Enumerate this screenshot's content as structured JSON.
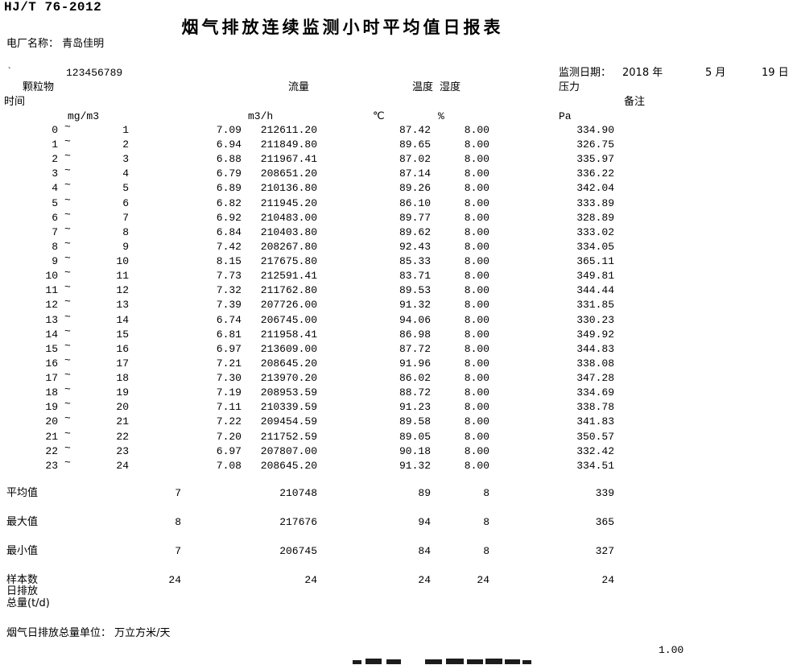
{
  "doc": {
    "standard": "HJ/T 76-2012",
    "title": "烟气排放连续监测小时平均值日报表",
    "plant_label": "电厂名称：",
    "plant_name": "青岛佳明",
    "tick_mark": "`",
    "serial": "123456789",
    "date_label": "监测日期：",
    "date_year": "2018 年",
    "date_month": "5 月",
    "date_day": "19 日"
  },
  "columns": {
    "time_label": "时间",
    "particulate": {
      "name": "颗粒物",
      "unit": "mg/m3"
    },
    "flow": {
      "name": "流量",
      "unit": "m3/h"
    },
    "temperature": {
      "name": "温度",
      "unit": "℃"
    },
    "humidity": {
      "name": "湿度",
      "unit": "%"
    },
    "pressure": {
      "name": "压力",
      "unit": "Pa"
    },
    "remark": {
      "name": "备注"
    }
  },
  "table": {
    "tilde": "~",
    "rows": [
      {
        "from": "0",
        "to": "1",
        "conc": "7.09",
        "flow": "212611.20",
        "temp": "87.42",
        "hum": "8.00",
        "pres": "334.90"
      },
      {
        "from": "1",
        "to": "2",
        "conc": "6.94",
        "flow": "211849.80",
        "temp": "89.65",
        "hum": "8.00",
        "pres": "326.75"
      },
      {
        "from": "2",
        "to": "3",
        "conc": "6.88",
        "flow": "211967.41",
        "temp": "87.02",
        "hum": "8.00",
        "pres": "335.97"
      },
      {
        "from": "3",
        "to": "4",
        "conc": "6.79",
        "flow": "208651.20",
        "temp": "87.14",
        "hum": "8.00",
        "pres": "336.22"
      },
      {
        "from": "4",
        "to": "5",
        "conc": "6.89",
        "flow": "210136.80",
        "temp": "89.26",
        "hum": "8.00",
        "pres": "342.04"
      },
      {
        "from": "5",
        "to": "6",
        "conc": "6.82",
        "flow": "211945.20",
        "temp": "86.10",
        "hum": "8.00",
        "pres": "333.89"
      },
      {
        "from": "6",
        "to": "7",
        "conc": "6.92",
        "flow": "210483.00",
        "temp": "89.77",
        "hum": "8.00",
        "pres": "328.89"
      },
      {
        "from": "7",
        "to": "8",
        "conc": "6.84",
        "flow": "210403.80",
        "temp": "89.62",
        "hum": "8.00",
        "pres": "333.02"
      },
      {
        "from": "8",
        "to": "9",
        "conc": "7.42",
        "flow": "208267.80",
        "temp": "92.43",
        "hum": "8.00",
        "pres": "334.05"
      },
      {
        "from": "9",
        "to": "10",
        "conc": "8.15",
        "flow": "217675.80",
        "temp": "85.33",
        "hum": "8.00",
        "pres": "365.11"
      },
      {
        "from": "10",
        "to": "11",
        "conc": "7.73",
        "flow": "212591.41",
        "temp": "83.71",
        "hum": "8.00",
        "pres": "349.81"
      },
      {
        "from": "11",
        "to": "12",
        "conc": "7.32",
        "flow": "211762.80",
        "temp": "89.53",
        "hum": "8.00",
        "pres": "344.44"
      },
      {
        "from": "12",
        "to": "13",
        "conc": "7.39",
        "flow": "207726.00",
        "temp": "91.32",
        "hum": "8.00",
        "pres": "331.85"
      },
      {
        "from": "13",
        "to": "14",
        "conc": "6.74",
        "flow": "206745.00",
        "temp": "94.06",
        "hum": "8.00",
        "pres": "330.23"
      },
      {
        "from": "14",
        "to": "15",
        "conc": "6.81",
        "flow": "211958.41",
        "temp": "86.98",
        "hum": "8.00",
        "pres": "349.92"
      },
      {
        "from": "15",
        "to": "16",
        "conc": "6.97",
        "flow": "213609.00",
        "temp": "87.72",
        "hum": "8.00",
        "pres": "344.83"
      },
      {
        "from": "16",
        "to": "17",
        "conc": "7.21",
        "flow": "208645.20",
        "temp": "91.96",
        "hum": "8.00",
        "pres": "338.08"
      },
      {
        "from": "17",
        "to": "18",
        "conc": "7.30",
        "flow": "213970.20",
        "temp": "86.02",
        "hum": "8.00",
        "pres": "347.28"
      },
      {
        "from": "18",
        "to": "19",
        "conc": "7.19",
        "flow": "208953.59",
        "temp": "88.72",
        "hum": "8.00",
        "pres": "334.69"
      },
      {
        "from": "19",
        "to": "20",
        "conc": "7.11",
        "flow": "210339.59",
        "temp": "91.23",
        "hum": "8.00",
        "pres": "338.78"
      },
      {
        "from": "20",
        "to": "21",
        "conc": "7.22",
        "flow": "209454.59",
        "temp": "89.58",
        "hum": "8.00",
        "pres": "341.83"
      },
      {
        "from": "21",
        "to": "22",
        "conc": "7.20",
        "flow": "211752.59",
        "temp": "89.05",
        "hum": "8.00",
        "pres": "350.57"
      },
      {
        "from": "22",
        "to": "23",
        "conc": "6.97",
        "flow": "207807.00",
        "temp": "90.18",
        "hum": "8.00",
        "pres": "332.42"
      },
      {
        "from": "23",
        "to": "24",
        "conc": "7.08",
        "flow": "208645.20",
        "temp": "91.32",
        "hum": "8.00",
        "pres": "334.51"
      }
    ],
    "summary": [
      {
        "label": "平均值",
        "conc": "7",
        "flow": "210748",
        "temp": "89",
        "hum": "8",
        "pres": "339"
      },
      {
        "label": "最大值",
        "conc": "8",
        "flow": "217676",
        "temp": "94",
        "hum": "8",
        "pres": "365"
      },
      {
        "label": "最小值",
        "conc": "7",
        "flow": "206745",
        "temp": "84",
        "hum": "8",
        "pres": "327"
      },
      {
        "label": "样本数",
        "conc": "24",
        "flow": "24",
        "temp": "24",
        "hum": "24",
        "pres": "24"
      }
    ]
  },
  "footer": {
    "daily_emission_line1": "日排放",
    "daily_emission_line2": "总量(t/d)",
    "unit_note_label": "烟气日排放总量单位：",
    "unit_note_value": "万立方米/天",
    "page_number": "1.00"
  }
}
